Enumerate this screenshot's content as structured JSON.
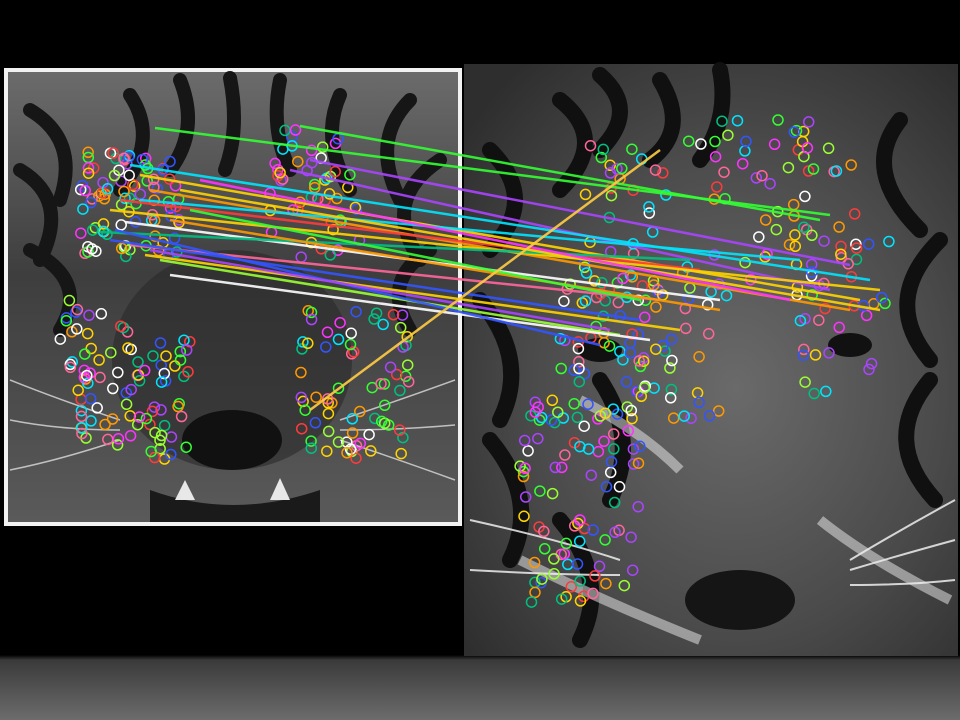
{
  "figure": {
    "subject": "feature-matching",
    "left_image_label": "",
    "right_image_label": ""
  },
  "palette": [
    "#ff3b3b",
    "#ffd400",
    "#33ff33",
    "#00e5ff",
    "#3355ff",
    "#ff33ff",
    "#ff9900",
    "#ffffff",
    "#99ff33",
    "#aa44ff",
    "#00c080",
    "#ff6699"
  ],
  "match_lines": [
    {
      "color": "#33ff33"
    },
    {
      "color": "#33ff33"
    },
    {
      "color": "#aa44ff"
    },
    {
      "color": "#aa44ff"
    },
    {
      "color": "#00e5ff"
    },
    {
      "color": "#ffd400"
    },
    {
      "color": "#ff9900"
    },
    {
      "color": "#ff3b3b"
    },
    {
      "color": "#ffd400"
    },
    {
      "color": "#ffffff"
    },
    {
      "color": "#00c080"
    },
    {
      "color": "#ff6699"
    },
    {
      "color": "#3355ff"
    },
    {
      "color": "#ffd400"
    },
    {
      "color": "#99ff33"
    },
    {
      "color": "#ffffff"
    },
    {
      "color": "#3355ff"
    },
    {
      "color": "#aa44ff"
    },
    {
      "color": "#ff9900"
    },
    {
      "color": "#00e5ff"
    },
    {
      "color": "#ffd400"
    },
    {
      "color": "#ff33ff"
    },
    {
      "color": "#33ff33"
    },
    {
      "color": "#ffcc44"
    }
  ]
}
